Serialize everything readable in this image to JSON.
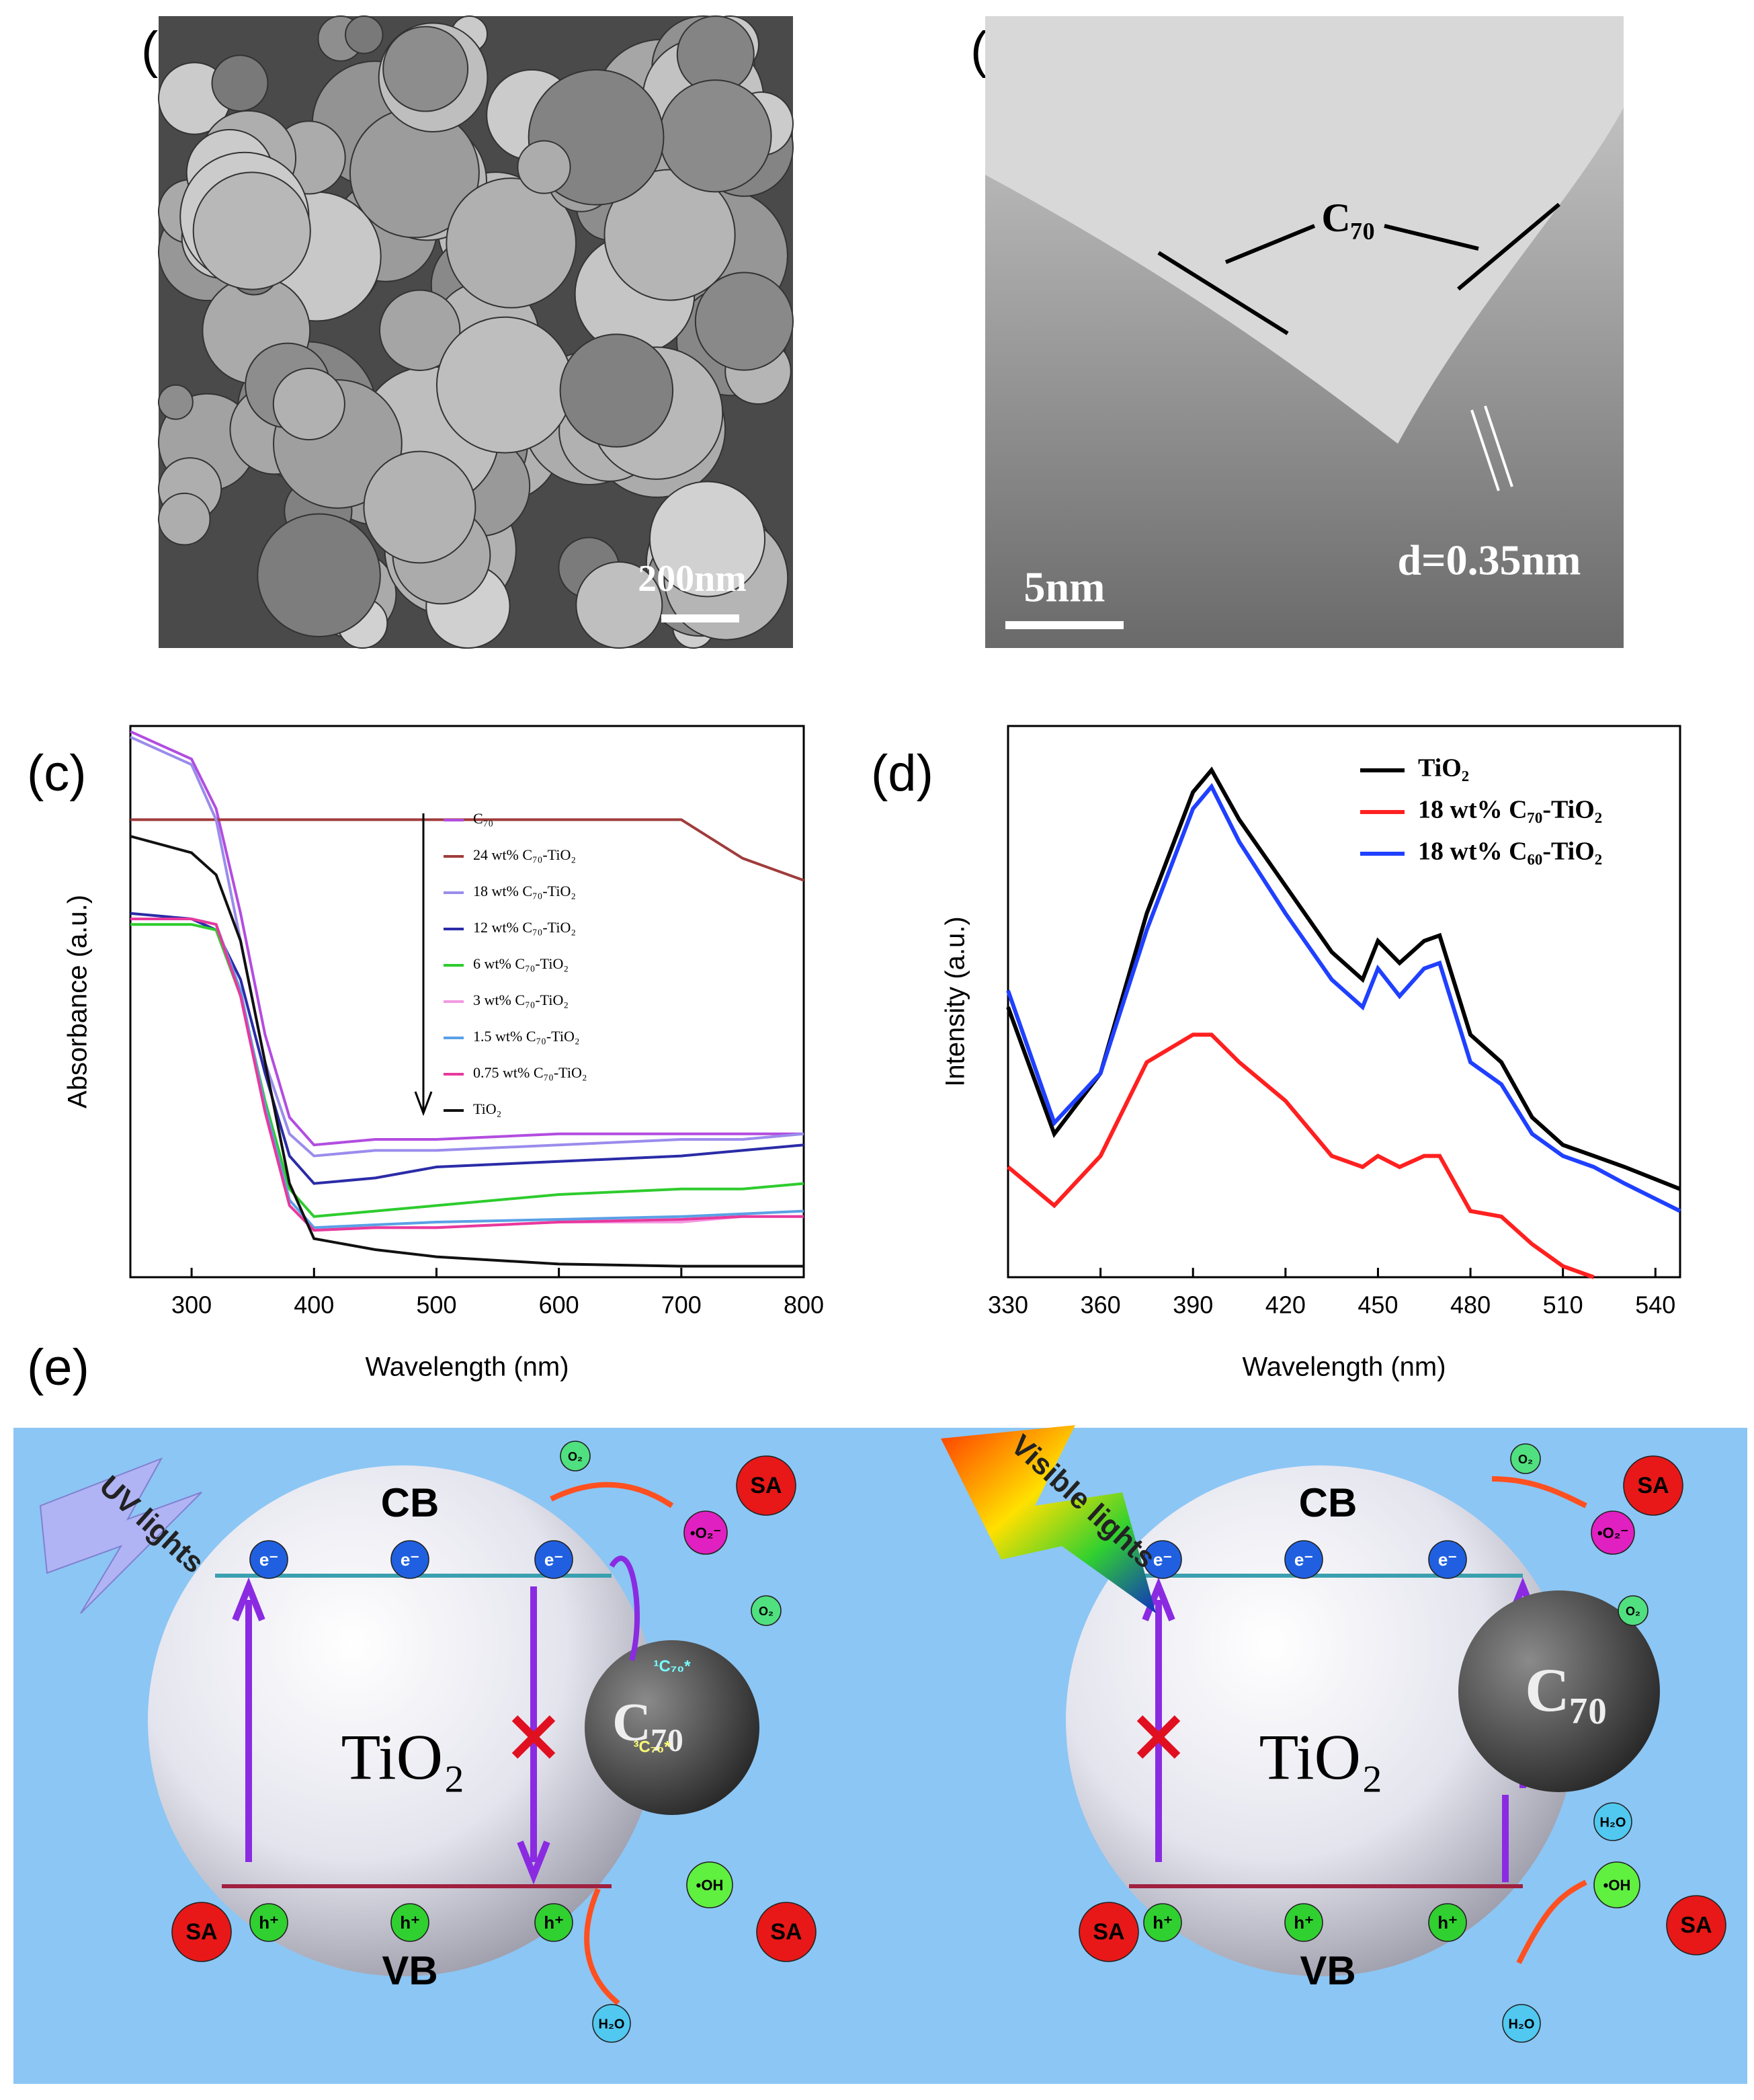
{
  "panel_labels": [
    "(a)",
    "(b)",
    "(c)",
    "(d)",
    "(e)"
  ],
  "image_a": {
    "scale_bar": "200nm"
  },
  "image_b": {
    "label": "C₇₀",
    "scale_bar": "5nm",
    "spacing": "d=0.35nm"
  },
  "chart_data": [
    {
      "type": "line",
      "x_label": "Wavelength (nm)",
      "y_label": "Absorbance (a.u.)",
      "x": [
        250,
        300,
        320,
        340,
        360,
        380,
        400,
        450,
        500,
        600,
        700,
        750,
        800
      ],
      "xlim": [
        250,
        800
      ],
      "xticks": [
        300,
        400,
        500,
        600,
        700,
        800
      ],
      "ylim": [
        0,
        1
      ],
      "legend": "upper-right",
      "series": [
        {
          "name": "C₇₀",
          "color": "#b24de0",
          "values": [
            0.99,
            0.94,
            0.85,
            0.66,
            0.44,
            0.29,
            0.24,
            0.25,
            0.25,
            0.26,
            0.26,
            0.26,
            0.26
          ]
        },
        {
          "name": "24 wt% C₇₀-TiO₂",
          "color": "#a03c3c",
          "values": [
            0.83,
            0.83,
            0.83,
            0.83,
            0.83,
            0.83,
            0.83,
            0.83,
            0.83,
            0.83,
            0.83,
            0.76,
            0.72
          ]
        },
        {
          "name": "18 wt% C₇₀-TiO₂",
          "color": "#9a8cec",
          "values": [
            0.98,
            0.93,
            0.83,
            0.61,
            0.39,
            0.26,
            0.22,
            0.23,
            0.23,
            0.24,
            0.25,
            0.25,
            0.26
          ]
        },
        {
          "name": "12 wt% C₇₀-TiO₂",
          "color": "#2b2ba8",
          "values": [
            0.66,
            0.65,
            0.63,
            0.54,
            0.37,
            0.22,
            0.17,
            0.18,
            0.2,
            0.21,
            0.22,
            0.23,
            0.24
          ]
        },
        {
          "name": "6 wt% C₇₀-TiO₂",
          "color": "#2ecc2e",
          "values": [
            0.64,
            0.64,
            0.63,
            0.51,
            0.32,
            0.16,
            0.11,
            0.12,
            0.13,
            0.15,
            0.16,
            0.16,
            0.17
          ]
        },
        {
          "name": "3 wt% C₇₀-TiO₂",
          "color": "#f29ae2",
          "values": [
            0.65,
            0.65,
            0.64,
            0.51,
            0.3,
            0.13,
            0.085,
            0.09,
            0.09,
            0.1,
            0.1,
            0.11,
            0.11
          ]
        },
        {
          "name": "1.5 wt% C₇₀-TiO₂",
          "color": "#5aa0e6",
          "values": [
            0.65,
            0.65,
            0.64,
            0.52,
            0.31,
            0.14,
            0.09,
            0.095,
            0.1,
            0.105,
            0.11,
            0.115,
            0.12
          ]
        },
        {
          "name": "0.75 wt% C₇₀-TiO₂",
          "color": "#e8389c",
          "values": [
            0.65,
            0.65,
            0.64,
            0.51,
            0.3,
            0.13,
            0.085,
            0.09,
            0.09,
            0.1,
            0.105,
            0.11,
            0.11
          ]
        },
        {
          "name": "TiO₂",
          "color": "#111111",
          "values": [
            0.8,
            0.77,
            0.73,
            0.61,
            0.39,
            0.17,
            0.07,
            0.05,
            0.037,
            0.024,
            0.02,
            0.02,
            0.02
          ]
        }
      ]
    },
    {
      "type": "line",
      "x_label": "Wavelength (nm)",
      "y_label": "Intensity (a.u.)",
      "x": [
        330,
        345,
        360,
        375,
        390,
        396,
        405,
        420,
        435,
        445,
        450,
        457,
        465,
        470,
        480,
        490,
        500,
        510,
        520,
        530,
        548
      ],
      "xlim": [
        330,
        548
      ],
      "xticks": [
        330,
        360,
        390,
        420,
        450,
        480,
        510,
        540
      ],
      "ylim": [
        0,
        1
      ],
      "legend": "upper-right",
      "series": [
        {
          "name": "TiO₂",
          "color": "#000000",
          "values": [
            0.49,
            0.26,
            0.37,
            0.66,
            0.88,
            0.92,
            0.83,
            0.71,
            0.59,
            0.54,
            0.61,
            0.57,
            0.61,
            0.62,
            0.44,
            0.39,
            0.29,
            0.24,
            0.22,
            0.2,
            0.16
          ]
        },
        {
          "name": "18 wt% C₇₀-TiO₂",
          "color": "#ff2020",
          "values": [
            0.2,
            0.13,
            0.22,
            0.39,
            0.44,
            0.44,
            0.39,
            0.32,
            0.22,
            0.2,
            0.22,
            0.2,
            0.22,
            0.22,
            0.12,
            0.11,
            0.06,
            0.02,
            0,
            null,
            null
          ]
        },
        {
          "name": "18 wt% C₆₀-TiO₂",
          "color": "#2040ff",
          "values": [
            0.52,
            0.28,
            0.37,
            0.63,
            0.85,
            0.89,
            0.79,
            0.66,
            0.54,
            0.49,
            0.56,
            0.51,
            0.56,
            0.57,
            0.39,
            0.35,
            0.26,
            0.22,
            0.2,
            0.17,
            0.12
          ]
        }
      ]
    }
  ],
  "diagram": {
    "uv_light": "UV lights",
    "visible_light": "Visible lights",
    "cb": "CB",
    "vb": "VB",
    "core": "TiO₂",
    "fullerene": "C₇₀",
    "electron": "e⁻",
    "hole": "h⁺",
    "sa": "SA",
    "superoxide": "•O₂⁻",
    "oxygen": "O₂",
    "hydroxyl": "•OH",
    "water": "H₂O",
    "singlet": "¹C₇₀*",
    "triplet": "³C₇₀*"
  }
}
